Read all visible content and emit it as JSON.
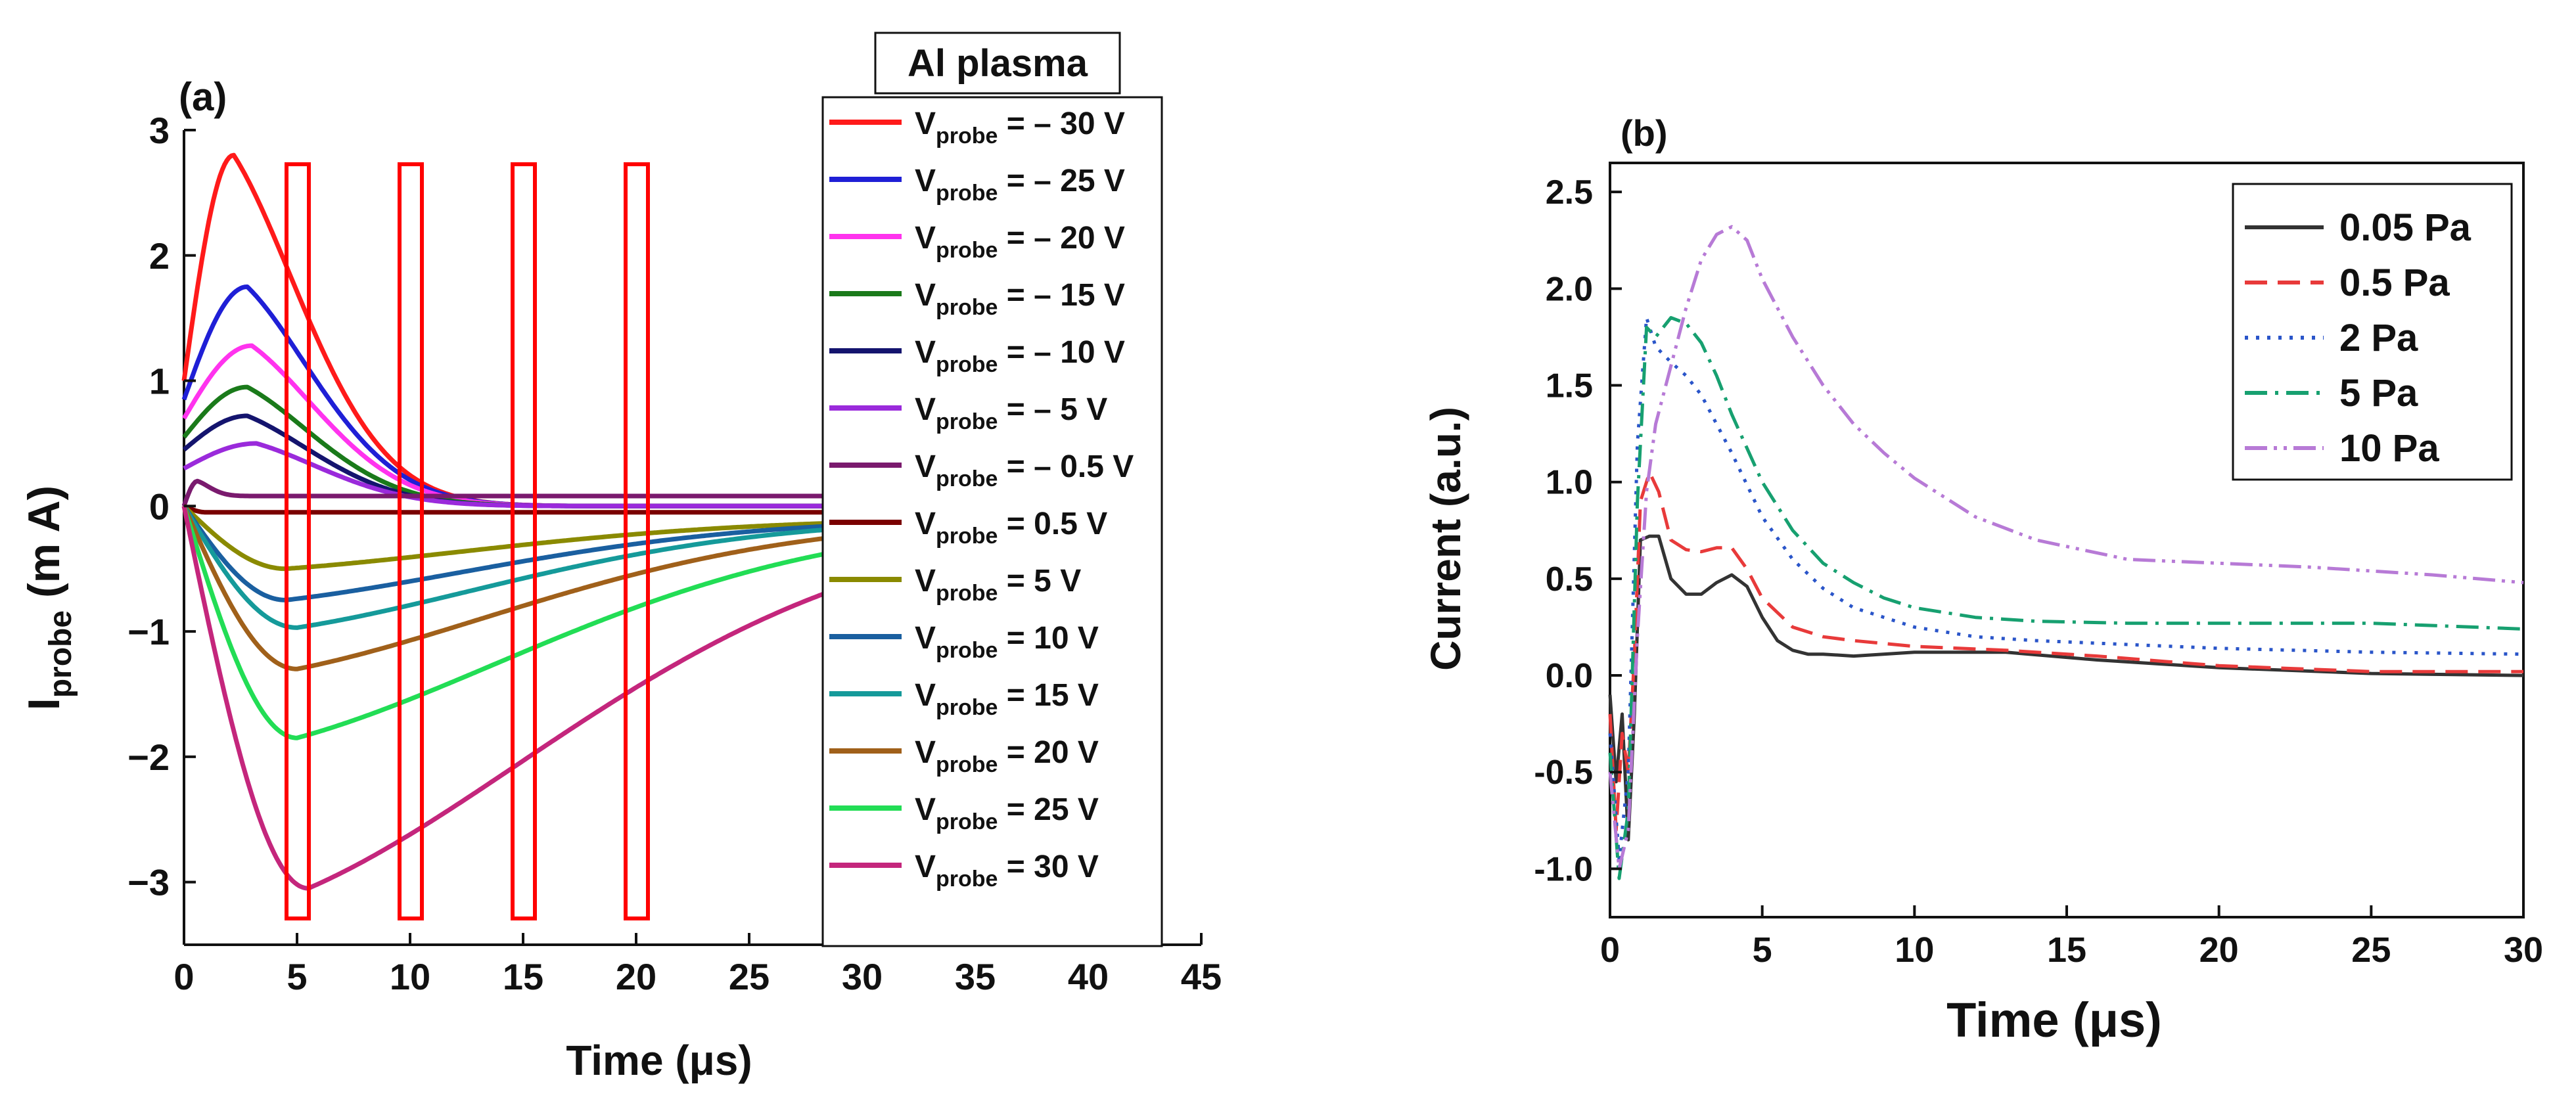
{
  "chart_data": [
    {
      "type": "line",
      "panel_label": "(a)",
      "box_title": "Al plasma",
      "xlabel": "Time (μs)",
      "ylabel_main": "I",
      "ylabel_sub": "probe",
      "ylabel_unit": " (m A)",
      "xlim": [
        0,
        45
      ],
      "ylim": [
        -3.5,
        3
      ],
      "xticks": [
        "0",
        "5",
        "10",
        "15",
        "20",
        "25",
        "30",
        "35",
        "40",
        "45"
      ],
      "yticks": [
        "3",
        "2",
        "1",
        "0",
        "−1",
        "−2",
        "−3"
      ],
      "legend_prefix": "V",
      "legend_sub": "probe",
      "series": [
        {
          "name": "= – 30 V",
          "color": "#ff1a1a",
          "peak": 2.8,
          "tpeak": 2.2,
          "tau": 4.5,
          "y0": 1.0,
          "final": 0.0
        },
        {
          "name": "= – 25 V",
          "color": "#1f1fd6",
          "peak": 1.75,
          "tpeak": 2.8,
          "tau": 4.5,
          "y0": 0.85,
          "final": 0.0
        },
        {
          "name": "= – 20 V",
          "color": "#ff33ee",
          "peak": 1.28,
          "tpeak": 3.0,
          "tau": 4.5,
          "y0": 0.7,
          "final": 0.0
        },
        {
          "name": "= – 15 V",
          "color": "#1a7a1a",
          "peak": 0.95,
          "tpeak": 2.8,
          "tau": 4.5,
          "y0": 0.55,
          "final": 0.0
        },
        {
          "name": "= – 10 V",
          "color": "#14146e",
          "peak": 0.72,
          "tpeak": 2.8,
          "tau": 4.5,
          "y0": 0.45,
          "final": 0.0
        },
        {
          "name": "= – 5 V",
          "color": "#9a2adb",
          "peak": 0.5,
          "tpeak": 3.2,
          "tau": 4.5,
          "y0": 0.3,
          "final": 0.0
        },
        {
          "name": "= – 0.5 V",
          "color": "#7a1a6e",
          "peak": 0.2,
          "tpeak": 0.6,
          "tau": 0.8,
          "y0": 0.0,
          "final": 0.08
        },
        {
          "name": "= 0.5 V",
          "color": "#7a0000",
          "peak": -0.05,
          "tpeak": 1.0,
          "tau": 2.0,
          "y0": 0.0,
          "final": -0.05
        },
        {
          "name": "= 5 V",
          "color": "#8a8a00",
          "peak": -0.5,
          "tpeak": 4.5,
          "tau": 14,
          "y0": 0.0,
          "final": -0.1
        },
        {
          "name": "= 10 V",
          "color": "#1a5fa0",
          "peak": -0.75,
          "tpeak": 4.5,
          "tau": 14,
          "y0": 0.0,
          "final": -0.1
        },
        {
          "name": "= 15 V",
          "color": "#159a9a",
          "peak": -0.97,
          "tpeak": 5.0,
          "tau": 14,
          "y0": 0.0,
          "final": -0.1
        },
        {
          "name": "= 20 V",
          "color": "#a0601a",
          "peak": -1.3,
          "tpeak": 5.0,
          "tau": 15,
          "y0": 0.0,
          "final": -0.1
        },
        {
          "name": "= 25 V",
          "color": "#22dd55",
          "peak": -1.85,
          "tpeak": 5.0,
          "tau": 16,
          "y0": 0.0,
          "final": -0.1
        },
        {
          "name": "= 30 V",
          "color": "#c4267c",
          "peak": -3.05,
          "tpeak": 5.5,
          "tau": 17,
          "y0": 0.0,
          "final": -0.1
        }
      ],
      "highlight_times_us": [
        5,
        10,
        15,
        20
      ],
      "highlight_color": "#ff0000"
    },
    {
      "type": "line",
      "panel_label": "(b)",
      "xlabel": "Time (μs)",
      "ylabel": "Current (a.u.)",
      "xlim": [
        0,
        30
      ],
      "ylim": [
        -1.25,
        2.65
      ],
      "xticks": [
        "0",
        "5",
        "10",
        "15",
        "20",
        "25",
        "30"
      ],
      "yticks": [
        "2.5",
        "2.0",
        "1.5",
        "1.0",
        "0.5",
        "0.0",
        "-0.5",
        "-1.0"
      ],
      "series": [
        {
          "name": "0.05 Pa",
          "color": "#333333",
          "dash": "",
          "x": [
            0,
            0.2,
            0.4,
            0.6,
            0.8,
            1.0,
            1.3,
            1.6,
            2.0,
            2.5,
            3.0,
            3.5,
            4.0,
            4.5,
            5.0,
            5.5,
            6.0,
            6.5,
            7.0,
            8.0,
            10.0,
            13.0,
            16.0,
            20.0,
            25.0,
            30.0
          ],
          "y": [
            -0.1,
            -0.55,
            -0.2,
            -0.85,
            -0.2,
            0.7,
            0.72,
            0.72,
            0.5,
            0.42,
            0.42,
            0.48,
            0.52,
            0.46,
            0.3,
            0.18,
            0.13,
            0.11,
            0.11,
            0.1,
            0.12,
            0.12,
            0.08,
            0.04,
            0.01,
            0.0
          ]
        },
        {
          "name": "0.5 Pa",
          "color": "#e83a3a",
          "dash": "34,16",
          "x": [
            0,
            0.2,
            0.4,
            0.6,
            0.8,
            1.0,
            1.3,
            1.6,
            2.0,
            2.5,
            3.0,
            3.5,
            4.0,
            4.5,
            5.0,
            6.0,
            7.0,
            8.0,
            10.0,
            13.0,
            16.0,
            20.0,
            25.0,
            30.0
          ],
          "y": [
            -0.2,
            -0.8,
            -0.3,
            -0.5,
            0.1,
            0.9,
            1.05,
            0.95,
            0.7,
            0.65,
            0.64,
            0.66,
            0.66,
            0.55,
            0.4,
            0.25,
            0.2,
            0.18,
            0.15,
            0.13,
            0.1,
            0.05,
            0.02,
            0.02
          ]
        },
        {
          "name": "2 Pa",
          "color": "#2a55c9",
          "dash": "5,12",
          "x": [
            0,
            0.3,
            0.6,
            0.9,
            1.2,
            1.5,
            2.0,
            2.5,
            3.0,
            4.0,
            5.0,
            6.0,
            7.0,
            8.0,
            9.0,
            10.0,
            12.0,
            14.0,
            17.0,
            20.0,
            25.0,
            30.0
          ],
          "y": [
            -0.3,
            -0.95,
            -0.5,
            1.2,
            1.85,
            1.7,
            1.62,
            1.55,
            1.45,
            1.15,
            0.82,
            0.6,
            0.45,
            0.35,
            0.3,
            0.25,
            0.2,
            0.18,
            0.16,
            0.14,
            0.12,
            0.11
          ]
        },
        {
          "name": "5 Pa",
          "color": "#17a070",
          "dash": "34,12,5,12",
          "x": [
            0,
            0.3,
            0.6,
            0.9,
            1.2,
            1.5,
            2.0,
            2.5,
            3.0,
            3.5,
            4.0,
            5.0,
            6.0,
            7.0,
            8.0,
            9.0,
            10.0,
            12.0,
            14.0,
            17.0,
            20.0,
            25.0,
            30.0
          ],
          "y": [
            -0.4,
            -1.05,
            -0.7,
            0.9,
            1.8,
            1.75,
            1.85,
            1.82,
            1.72,
            1.55,
            1.35,
            1.0,
            0.75,
            0.58,
            0.48,
            0.4,
            0.35,
            0.3,
            0.28,
            0.27,
            0.27,
            0.27,
            0.24
          ]
        },
        {
          "name": "10 Pa",
          "color": "#b77ad6",
          "dash": "34,10,5,10,5,10",
          "x": [
            0,
            0.3,
            0.6,
            0.9,
            1.2,
            1.5,
            2.0,
            2.5,
            3.0,
            3.5,
            4.0,
            4.5,
            5.0,
            6.0,
            7.0,
            8.0,
            9.0,
            10.0,
            12.0,
            14.0,
            17.0,
            20.0,
            23.0,
            27.0,
            30.0
          ],
          "y": [
            -0.5,
            -1.0,
            -0.8,
            0.2,
            0.95,
            1.3,
            1.6,
            1.9,
            2.15,
            2.28,
            2.32,
            2.25,
            2.05,
            1.75,
            1.5,
            1.3,
            1.15,
            1.02,
            0.82,
            0.7,
            0.6,
            0.58,
            0.56,
            0.52,
            0.48
          ]
        }
      ]
    }
  ]
}
